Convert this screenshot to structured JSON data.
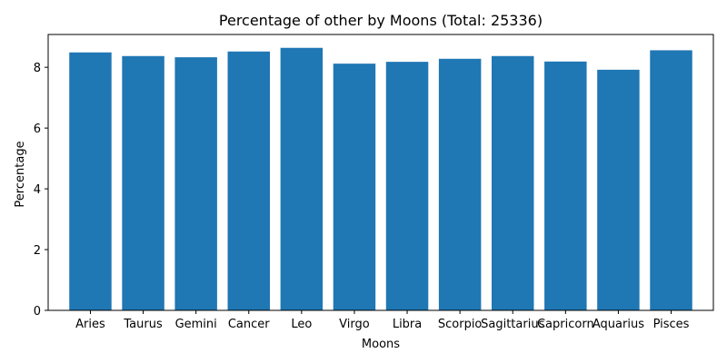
{
  "chart_data": {
    "type": "bar",
    "title": "Percentage of other by Moons (Total: 25336)",
    "xlabel": "Moons",
    "ylabel": "Percentage",
    "categories": [
      "Aries",
      "Taurus",
      "Gemini",
      "Cancer",
      "Leo",
      "Virgo",
      "Libra",
      "Scorpio",
      "Sagittarius",
      "Capricorn",
      "Aquarius",
      "Pisces"
    ],
    "values": [
      8.49,
      8.37,
      8.33,
      8.52,
      8.64,
      8.12,
      8.18,
      8.28,
      8.37,
      8.19,
      7.92,
      8.56
    ],
    "ylim": [
      0,
      9.08
    ],
    "yticks": [
      0,
      2,
      4,
      6,
      8
    ],
    "grid": false,
    "legend": "none",
    "colors": {
      "bar": "#1f77b4",
      "axis": "#000000"
    }
  }
}
